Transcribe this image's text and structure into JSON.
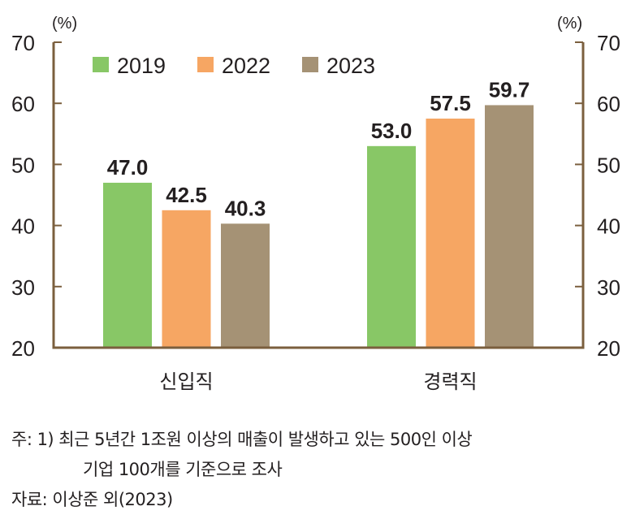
{
  "chart_data": {
    "type": "bar",
    "title": "",
    "unit_left": "(%)",
    "unit_right": "(%)",
    "categories": [
      "신입직",
      "경력직"
    ],
    "series": [
      {
        "name": "2019",
        "color": "#88c766",
        "values": [
          47.0,
          53.0
        ],
        "labels": [
          "47.0",
          "53.0"
        ]
      },
      {
        "name": "2022",
        "color": "#f6a663",
        "values": [
          42.5,
          57.5
        ],
        "labels": [
          "42.5",
          "57.5"
        ]
      },
      {
        "name": "2023",
        "color": "#a59275",
        "values": [
          40.3,
          59.7
        ],
        "labels": [
          "40.3",
          "59.7"
        ]
      }
    ],
    "ylim": [
      20,
      70
    ],
    "yticks": [
      "20",
      "30",
      "40",
      "50",
      "60",
      "70"
    ],
    "xlabel": "",
    "ylabel": "",
    "axis_color": "#7b5f3e",
    "legend_position": "top-left",
    "grid": false
  },
  "notes": {
    "note_line1": "주:  1) 최근 5년간 1조원 이상의 매출이 발생하고 있는 500인 이상",
    "note_line2": "기업 100개를 기준으로 조사",
    "source": "자료:  이상준 외(2023)"
  }
}
